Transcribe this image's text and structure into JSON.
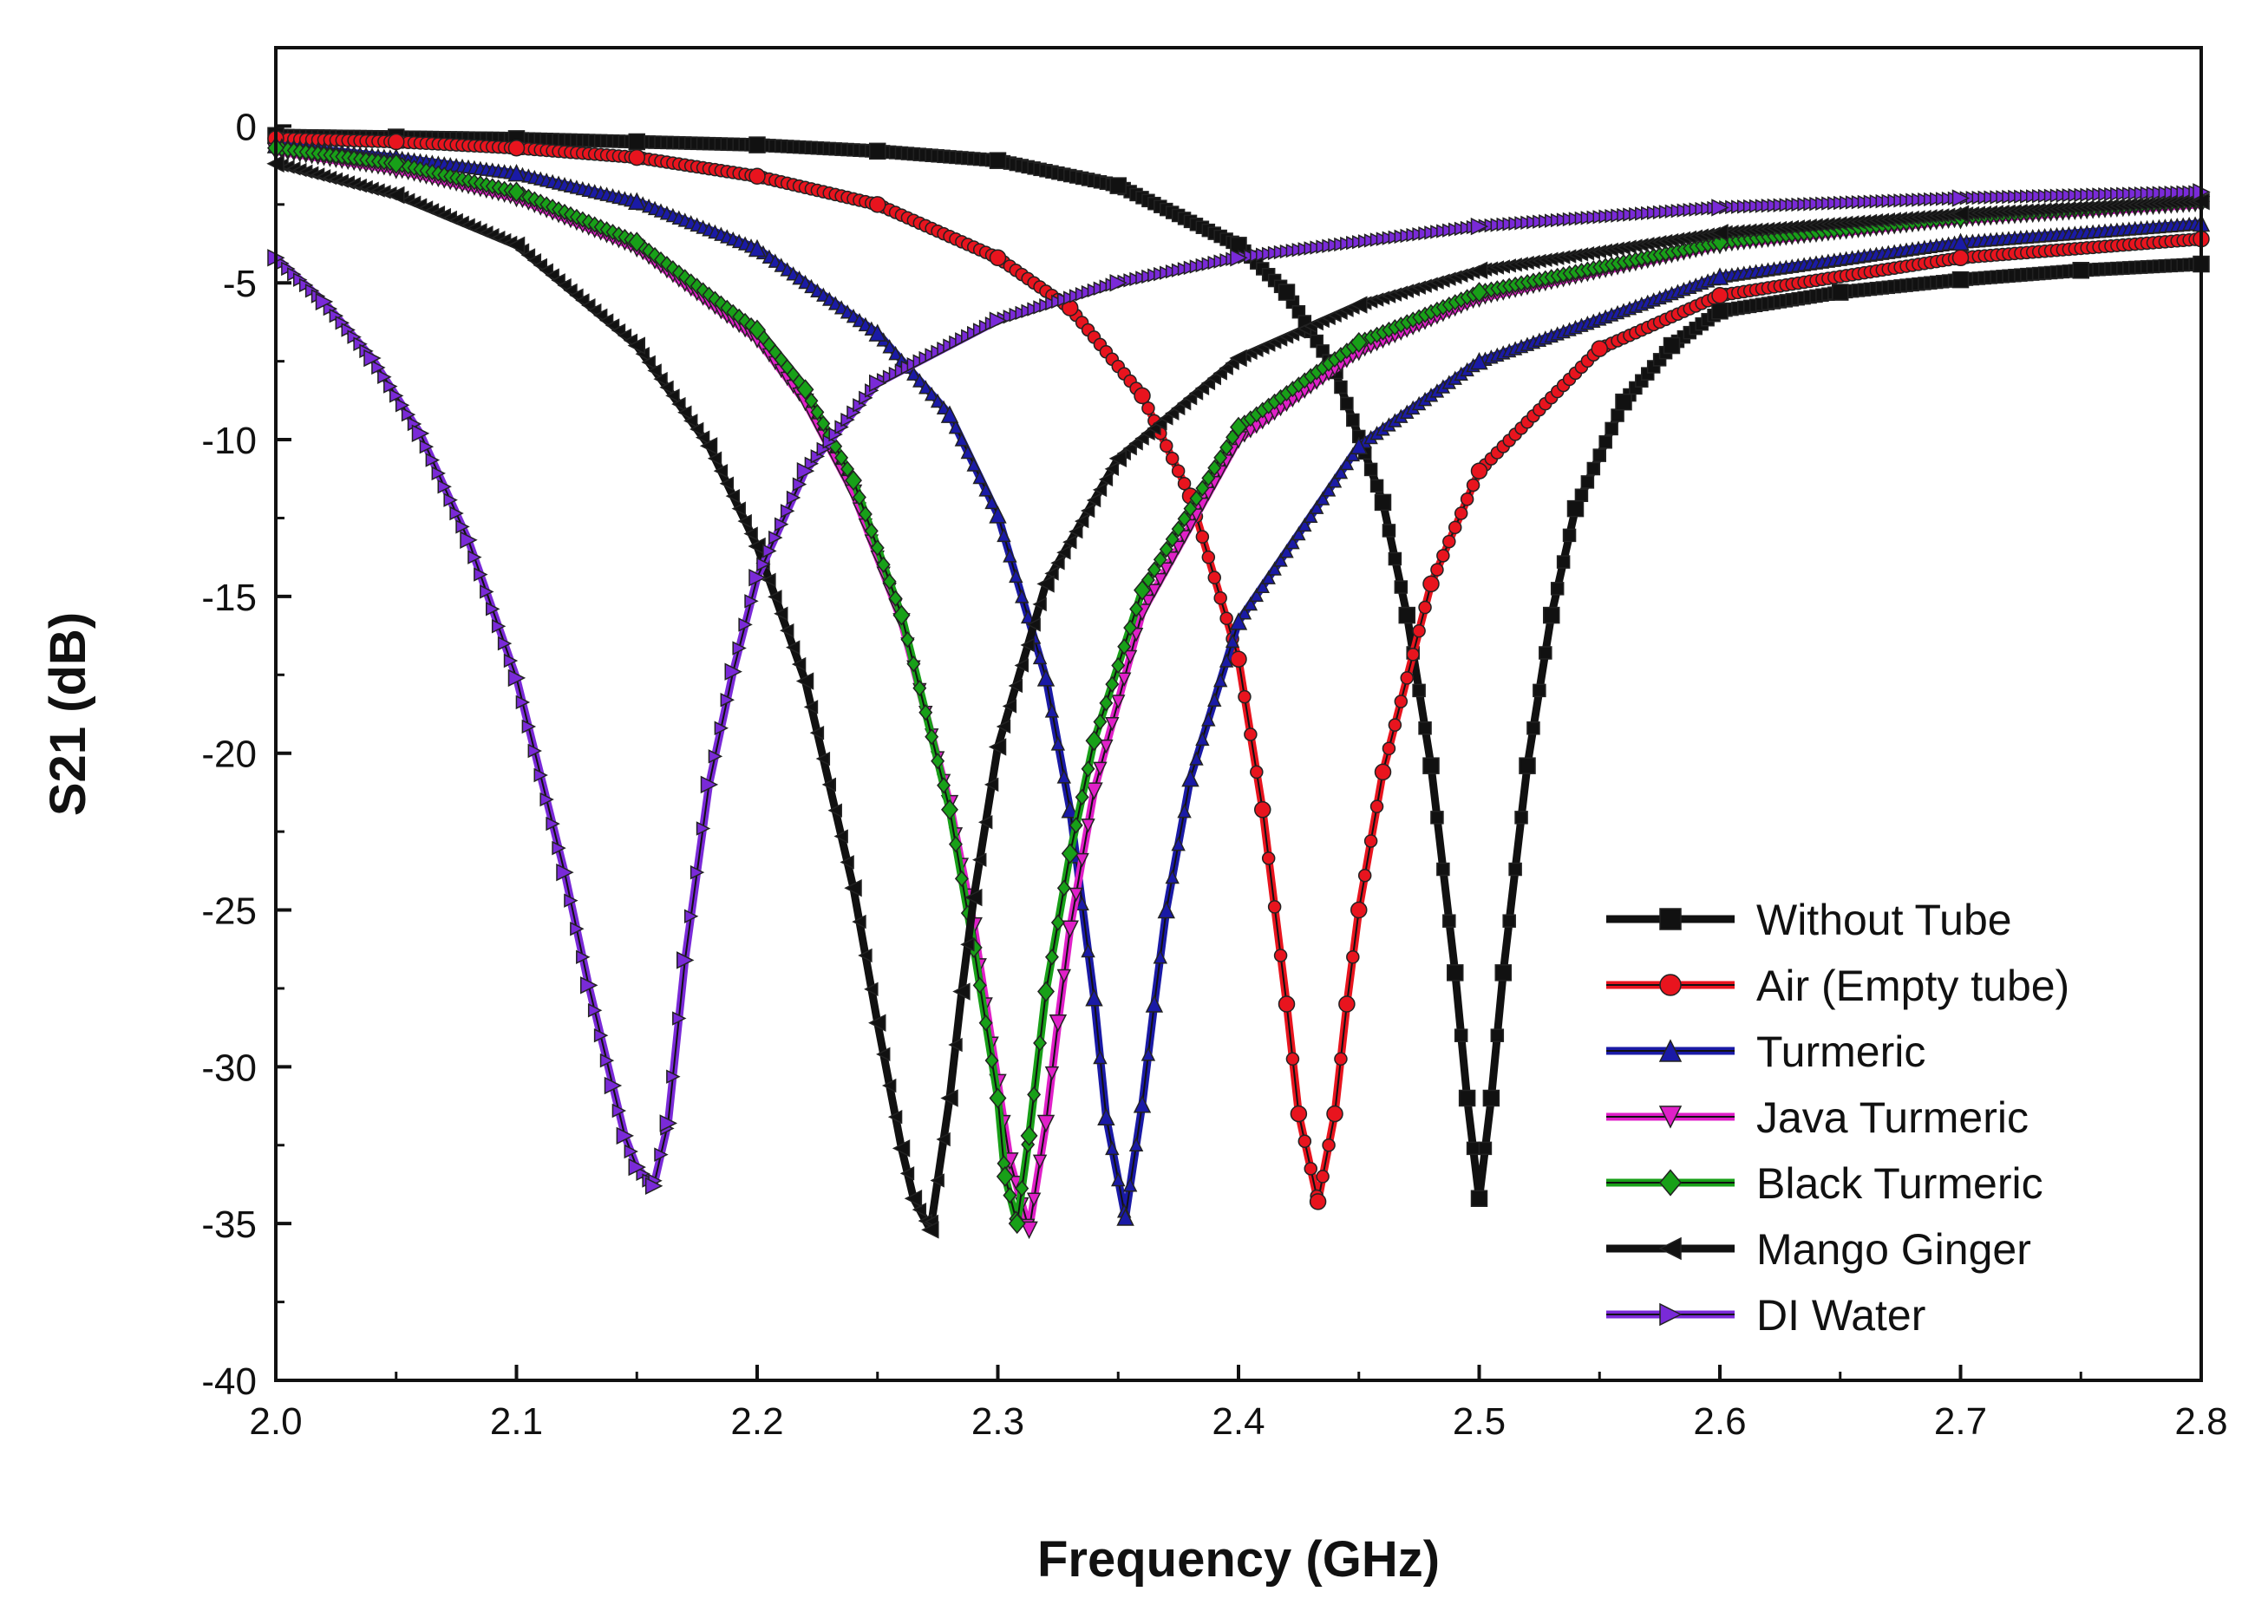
{
  "chart_data": {
    "type": "line",
    "title": "",
    "xlabel": "Frequency (GHz)",
    "ylabel": "S21 (dB)",
    "xlim": [
      2.0,
      2.8
    ],
    "ylim": [
      -40,
      2.5
    ],
    "x_ticks": [
      2.0,
      2.1,
      2.2,
      2.3,
      2.4,
      2.5,
      2.6,
      2.7,
      2.8
    ],
    "x_tick_labels": [
      "2.0",
      "2.1",
      "2.2",
      "2.3",
      "2.4",
      "2.5",
      "2.6",
      "2.7",
      "2.8"
    ],
    "y_ticks": [
      0,
      -5,
      -10,
      -15,
      -20,
      -25,
      -30,
      -35,
      -40
    ],
    "y_tick_labels": [
      "0",
      "-5",
      "-10",
      "-15",
      "-20",
      "-25",
      "-30",
      "-35",
      "-40"
    ],
    "grid": false,
    "legend_position": "bottom-right",
    "series": [
      {
        "name": "Without Tube",
        "color": "#111111",
        "marker": "square",
        "x": [
          2.0,
          2.05,
          2.1,
          2.15,
          2.2,
          2.25,
          2.3,
          2.35,
          2.4,
          2.42,
          2.44,
          2.46,
          2.47,
          2.48,
          2.49,
          2.495,
          2.5,
          2.505,
          2.51,
          2.52,
          2.53,
          2.54,
          2.56,
          2.58,
          2.6,
          2.65,
          2.7,
          2.75,
          2.8
        ],
        "y": [
          -0.3,
          -0.35,
          -0.4,
          -0.5,
          -0.6,
          -0.8,
          -1.1,
          -1.9,
          -3.8,
          -5.3,
          -7.8,
          -12.0,
          -15.6,
          -20.4,
          -27.0,
          -31.0,
          -34.2,
          -31.0,
          -27.0,
          -20.4,
          -15.6,
          -12.2,
          -8.8,
          -7.0,
          -5.9,
          -5.3,
          -4.9,
          -4.6,
          -4.4
        ]
      },
      {
        "name": "Air (Empty tube)",
        "color": "#e8141e",
        "marker": "circle",
        "x": [
          2.0,
          2.05,
          2.1,
          2.15,
          2.2,
          2.25,
          2.3,
          2.33,
          2.36,
          2.38,
          2.4,
          2.41,
          2.42,
          2.425,
          2.433,
          2.44,
          2.445,
          2.45,
          2.46,
          2.48,
          2.5,
          2.55,
          2.6,
          2.7,
          2.8
        ],
        "y": [
          -0.4,
          -0.5,
          -0.7,
          -1.0,
          -1.6,
          -2.5,
          -4.2,
          -5.8,
          -8.6,
          -11.8,
          -17.0,
          -21.8,
          -28.0,
          -31.5,
          -34.3,
          -31.5,
          -28.0,
          -25.0,
          -20.6,
          -14.6,
          -11.0,
          -7.1,
          -5.4,
          -4.2,
          -3.6
        ]
      },
      {
        "name": "Turmeric",
        "color": "#1a1aa6",
        "marker": "triangle-up",
        "x": [
          2.0,
          2.05,
          2.1,
          2.15,
          2.2,
          2.25,
          2.28,
          2.3,
          2.32,
          2.33,
          2.34,
          2.345,
          2.353,
          2.36,
          2.365,
          2.37,
          2.38,
          2.4,
          2.45,
          2.5,
          2.6,
          2.7,
          2.8
        ],
        "y": [
          -0.6,
          -1.0,
          -1.5,
          -2.4,
          -3.9,
          -6.6,
          -9.2,
          -12.4,
          -17.6,
          -21.8,
          -27.8,
          -31.6,
          -34.8,
          -31.2,
          -28.0,
          -25.0,
          -20.8,
          -15.8,
          -10.2,
          -7.5,
          -4.8,
          -3.7,
          -3.1
        ]
      },
      {
        "name": "Java Turmeric",
        "color": "#e020c8",
        "marker": "triangle-down",
        "x": [
          2.0,
          2.05,
          2.1,
          2.15,
          2.2,
          2.22,
          2.24,
          2.26,
          2.28,
          2.29,
          2.3,
          2.305,
          2.313,
          2.32,
          2.325,
          2.33,
          2.34,
          2.36,
          2.4,
          2.45,
          2.5,
          2.6,
          2.7,
          2.8
        ],
        "y": [
          -0.8,
          -1.4,
          -2.3,
          -3.9,
          -6.8,
          -8.8,
          -11.7,
          -15.8,
          -21.6,
          -25.5,
          -30.5,
          -33.0,
          -35.2,
          -31.8,
          -28.6,
          -25.6,
          -21.2,
          -15.5,
          -10.0,
          -7.2,
          -5.5,
          -3.8,
          -3.0,
          -2.5
        ]
      },
      {
        "name": "Black Turmeric",
        "color": "#18a018",
        "marker": "diamond",
        "x": [
          2.0,
          2.05,
          2.1,
          2.15,
          2.2,
          2.22,
          2.24,
          2.26,
          2.28,
          2.29,
          2.3,
          2.303,
          2.308,
          2.313,
          2.32,
          2.33,
          2.34,
          2.36,
          2.4,
          2.45,
          2.5,
          2.6,
          2.7,
          2.8
        ],
        "y": [
          -0.7,
          -1.2,
          -2.1,
          -3.7,
          -6.5,
          -8.4,
          -11.3,
          -15.6,
          -21.8,
          -26.2,
          -31.0,
          -33.5,
          -35.0,
          -32.2,
          -27.6,
          -23.2,
          -19.6,
          -14.8,
          -9.6,
          -6.9,
          -5.3,
          -3.7,
          -2.9,
          -2.4
        ]
      },
      {
        "name": "Mango Ginger",
        "color": "#111111",
        "marker": "triangle-left",
        "x": [
          2.0,
          2.05,
          2.1,
          2.15,
          2.18,
          2.2,
          2.22,
          2.24,
          2.25,
          2.26,
          2.265,
          2.272,
          2.28,
          2.285,
          2.29,
          2.3,
          2.32,
          2.35,
          2.4,
          2.45,
          2.5,
          2.6,
          2.7,
          2.8
        ],
        "y": [
          -1.2,
          -2.2,
          -3.8,
          -7.0,
          -10.2,
          -13.4,
          -17.7,
          -24.3,
          -28.6,
          -32.6,
          -34.2,
          -35.2,
          -31.0,
          -27.6,
          -24.6,
          -19.8,
          -14.6,
          -10.6,
          -7.4,
          -5.7,
          -4.6,
          -3.4,
          -2.8,
          -2.4
        ]
      },
      {
        "name": "DI Water",
        "color": "#7a2ad8",
        "marker": "triangle-right",
        "x": [
          2.0,
          2.02,
          2.04,
          2.06,
          2.08,
          2.1,
          2.12,
          2.13,
          2.14,
          2.145,
          2.15,
          2.157,
          2.163,
          2.17,
          2.18,
          2.19,
          2.2,
          2.22,
          2.25,
          2.3,
          2.35,
          2.4,
          2.5,
          2.6,
          2.7,
          2.8
        ],
        "y": [
          -4.2,
          -5.6,
          -7.4,
          -9.8,
          -13.2,
          -17.6,
          -23.8,
          -27.4,
          -30.6,
          -32.2,
          -33.2,
          -33.8,
          -31.8,
          -26.6,
          -21.0,
          -17.4,
          -14.4,
          -11.0,
          -8.2,
          -6.2,
          -5.0,
          -4.2,
          -3.2,
          -2.6,
          -2.3,
          -2.1
        ]
      }
    ]
  }
}
